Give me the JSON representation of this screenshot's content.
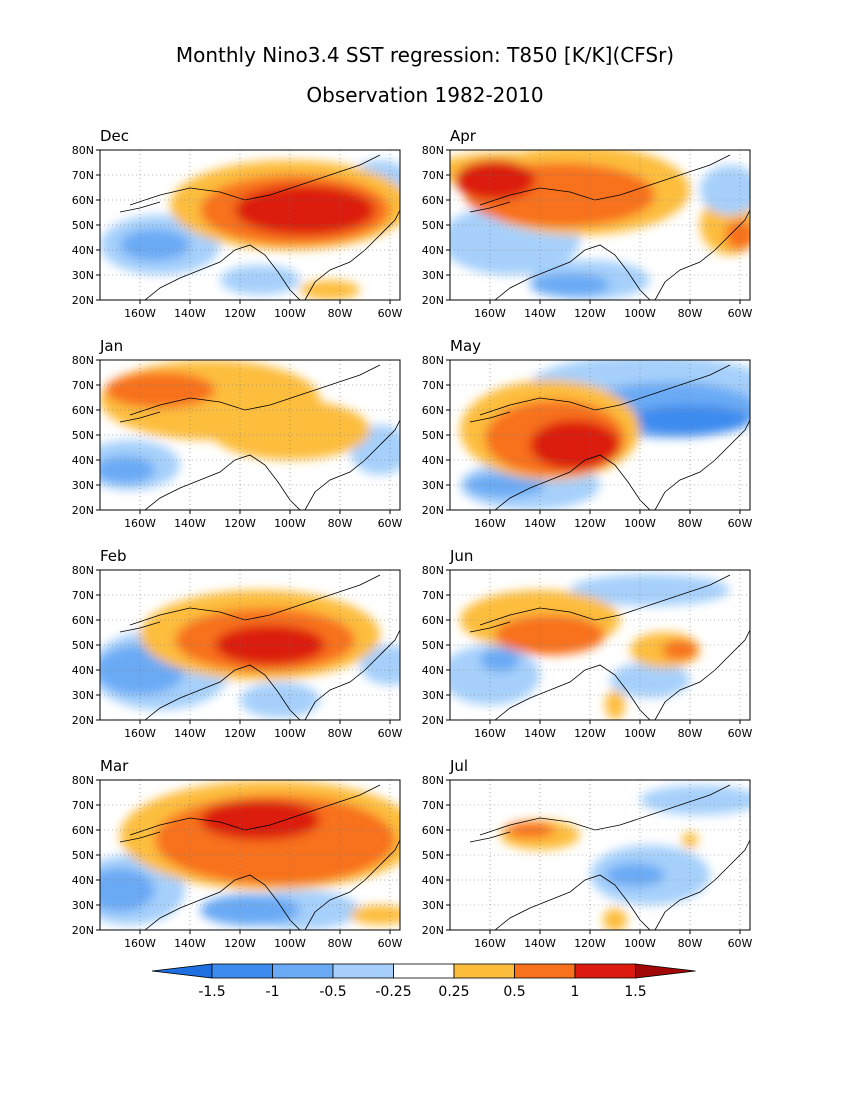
{
  "title": "Monthly Nino3.4 SST regression: T850 [K/K](CFSr)",
  "subtitle": "Observation 1982-2010",
  "lat_labels": [
    "80N",
    "70N",
    "60N",
    "50N",
    "40N",
    "30N",
    "20N"
  ],
  "lon_labels": [
    "160W",
    "140W",
    "120W",
    "100W",
    "80W",
    "60W"
  ],
  "panels": [
    {
      "month": "Dec"
    },
    {
      "month": "Apr"
    },
    {
      "month": "Jan"
    },
    {
      "month": "May"
    },
    {
      "month": "Feb"
    },
    {
      "month": "Jun"
    },
    {
      "month": "Mar"
    },
    {
      "month": "Jul"
    }
  ],
  "colorbar": {
    "labels": [
      "-1.5",
      "-1",
      "-0.5",
      "-0.25",
      "0.25",
      "0.5",
      "1",
      "1.5"
    ],
    "colors": [
      "#1e6fe0",
      "#3d8bef",
      "#6aaaf5",
      "#a6d0fb",
      "#ffffff",
      "#fdbd3c",
      "#f8711c",
      "#dc1b0e",
      "#a20808"
    ]
  }
}
